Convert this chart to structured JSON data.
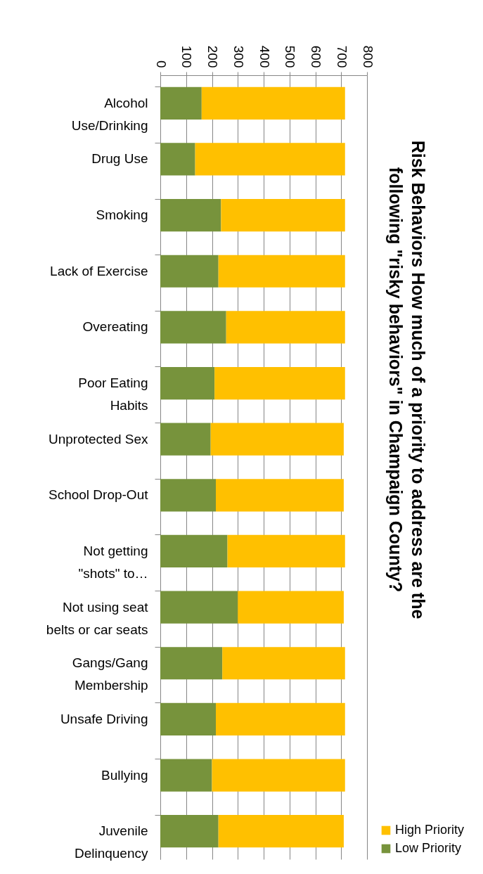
{
  "chart_data": {
    "type": "bar",
    "stacked": true,
    "orientation": "horizontal",
    "title": "Risk Behaviors  How much of a priority to address are the following \"risky behaviors\" in Champaign County?",
    "categories": [
      "Alcohol Use/Drinking",
      "Drug Use",
      "Smoking",
      "Lack of Exercise",
      "Overeating",
      "Poor Eating Habits",
      "Unprotected Sex",
      "School Drop-Out",
      "Not getting \"shots\" to…",
      "Not using seat belts or car seats",
      "Gangs/Gang Membership",
      "Unsafe Driving",
      "Bullying",
      "Juvenile Delinquency"
    ],
    "series": [
      {
        "name": "Low Priority",
        "color": "#77933c",
        "values": [
          160,
          135,
          235,
          225,
          255,
          210,
          195,
          215,
          260,
          300,
          240,
          215,
          200,
          225
        ]
      },
      {
        "name": "High Priority",
        "color": "#ffc000",
        "values": [
          555,
          580,
          480,
          490,
          460,
          505,
          515,
          495,
          455,
          410,
          475,
          500,
          515,
          485
        ]
      }
    ],
    "xlim": [
      0,
      800
    ],
    "xticks": [
      0,
      100,
      200,
      300,
      400,
      500,
      600,
      700,
      800
    ],
    "grid": "x",
    "legend": "bottom right"
  }
}
